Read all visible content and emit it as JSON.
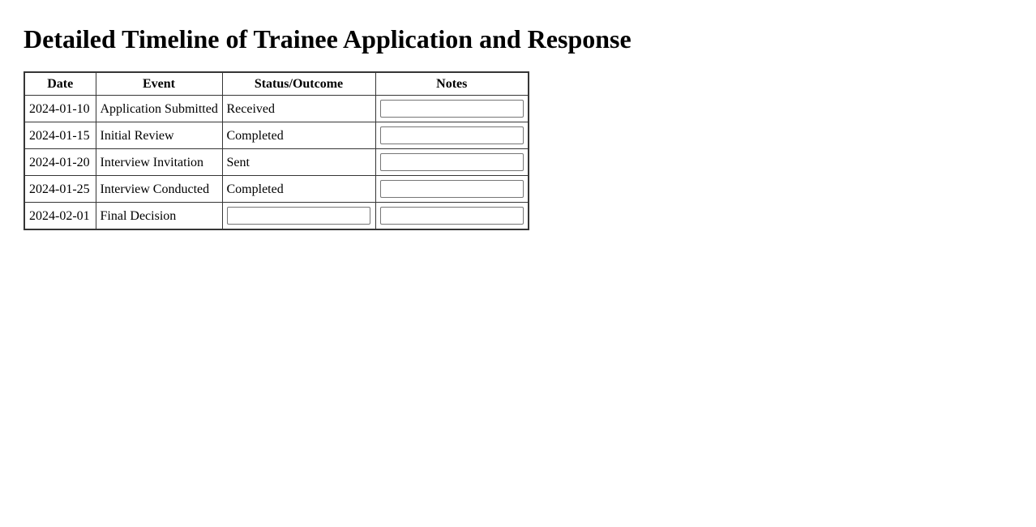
{
  "page": {
    "title": "Detailed Timeline of Trainee Application and Response"
  },
  "table": {
    "headers": [
      "Date",
      "Event",
      "Status/Outcome",
      "Notes"
    ],
    "rows": [
      {
        "date": "2024-01-10",
        "event": "Application Submitted",
        "status": "Received",
        "notes_value": ""
      },
      {
        "date": "2024-01-15",
        "event": "Initial Review",
        "status": "Completed",
        "notes_value": ""
      },
      {
        "date": "2024-01-20",
        "event": "Interview Invitation",
        "status": "Sent",
        "notes_value": ""
      },
      {
        "date": "2024-01-25",
        "event": "Interview Conducted",
        "status": "Completed",
        "notes_value": ""
      },
      {
        "date": "2024-02-01",
        "event": "Final Decision",
        "status_value": "",
        "notes_value": ""
      }
    ]
  },
  "colors": {
    "background": "#ffffff",
    "text": "#000000",
    "table_border": "#363636",
    "input_border": "#767676"
  }
}
